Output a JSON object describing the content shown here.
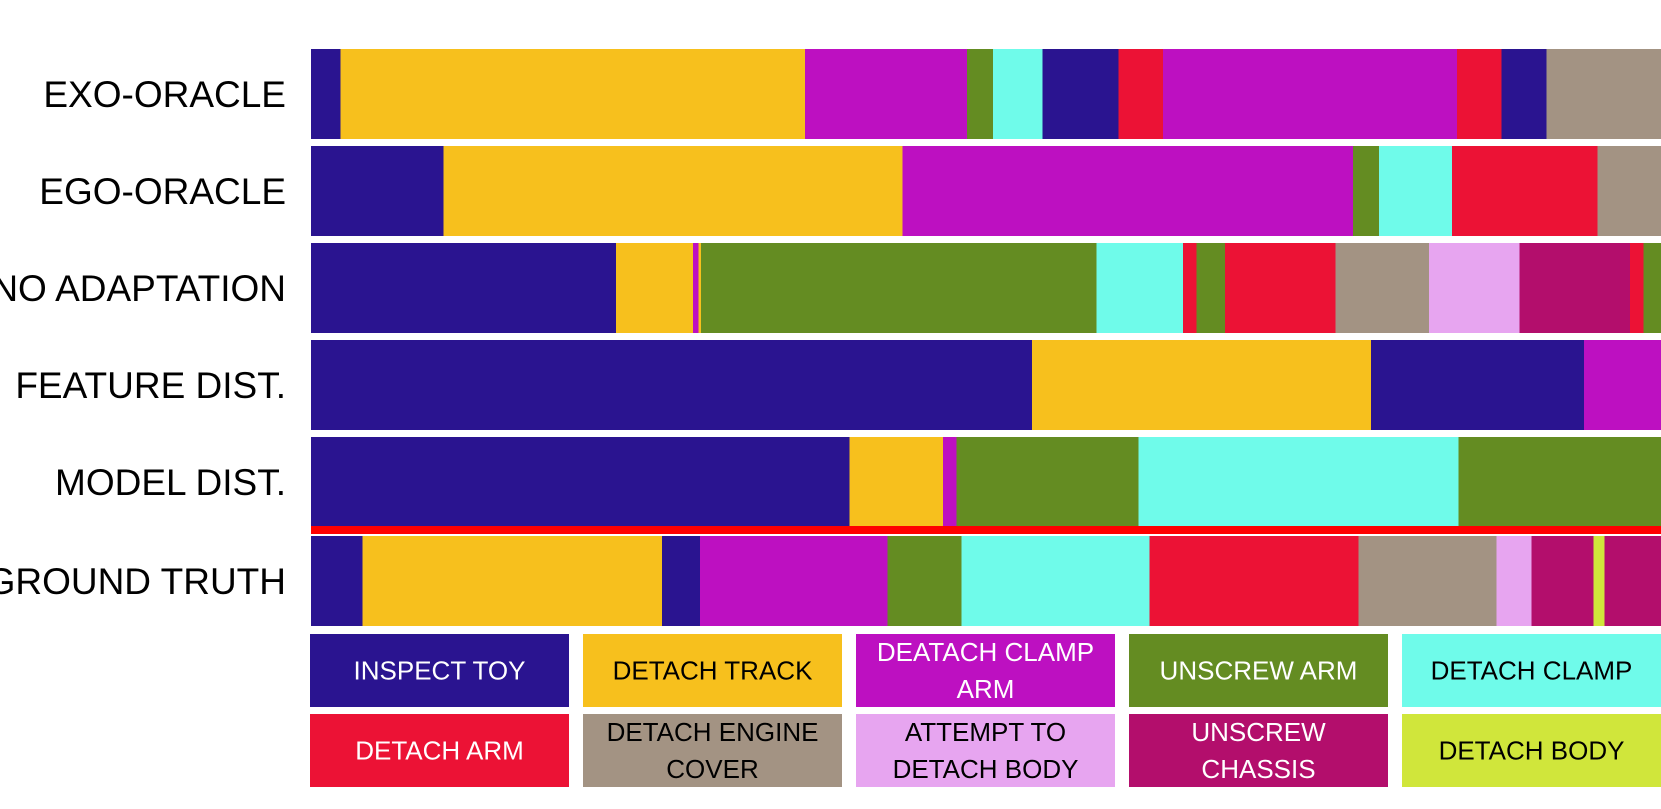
{
  "chart_data": {
    "type": "bar",
    "subtype": "segmentation-timeline",
    "x_range": [
      0,
      1
    ],
    "separator_color": "#ff0000",
    "rows": [
      {
        "label": "EXO-ORACLE",
        "segments": [
          {
            "action": "INSPECT TOY",
            "start": 0.0,
            "end": 0.022
          },
          {
            "action": "DETACH TRACK",
            "start": 0.022,
            "end": 0.366
          },
          {
            "action": "DEATACH CLAMP ARM",
            "start": 0.366,
            "end": 0.486
          },
          {
            "action": "UNSCREW ARM",
            "start": 0.486,
            "end": 0.505
          },
          {
            "action": "DETACH CLAMP",
            "start": 0.505,
            "end": 0.542
          },
          {
            "action": "INSPECT TOY",
            "start": 0.542,
            "end": 0.598
          },
          {
            "action": "DETACH ARM",
            "start": 0.598,
            "end": 0.631
          },
          {
            "action": "DEATACH CLAMP ARM",
            "start": 0.631,
            "end": 0.849
          },
          {
            "action": "DETACH ARM",
            "start": 0.849,
            "end": 0.882
          },
          {
            "action": "INSPECT TOY",
            "start": 0.882,
            "end": 0.915
          },
          {
            "action": "DETACH ENGINE COVER",
            "start": 0.915,
            "end": 1.0
          }
        ]
      },
      {
        "label": "EGO-ORACLE",
        "segments": [
          {
            "action": "INSPECT TOY",
            "start": 0.0,
            "end": 0.098
          },
          {
            "action": "DETACH TRACK",
            "start": 0.098,
            "end": 0.438
          },
          {
            "action": "DEATACH CLAMP ARM",
            "start": 0.438,
            "end": 0.772
          },
          {
            "action": "UNSCREW ARM",
            "start": 0.772,
            "end": 0.791
          },
          {
            "action": "DETACH CLAMP",
            "start": 0.791,
            "end": 0.845
          },
          {
            "action": "DETACH ARM",
            "start": 0.845,
            "end": 0.953
          },
          {
            "action": "DETACH ENGINE COVER",
            "start": 0.953,
            "end": 1.0
          }
        ]
      },
      {
        "label": "NO ADAPTATION",
        "segments": [
          {
            "action": "INSPECT TOY",
            "start": 0.0,
            "end": 0.226
          },
          {
            "action": "DETACH TRACK",
            "start": 0.226,
            "end": 0.283
          },
          {
            "action": "DEATACH CLAMP ARM",
            "start": 0.283,
            "end": 0.287
          },
          {
            "action": "DETACH TRACK",
            "start": 0.287,
            "end": 0.289
          },
          {
            "action": "UNSCREW ARM",
            "start": 0.289,
            "end": 0.582
          },
          {
            "action": "DETACH CLAMP",
            "start": 0.582,
            "end": 0.646
          },
          {
            "action": "DETACH ARM",
            "start": 0.646,
            "end": 0.656
          },
          {
            "action": "UNSCREW ARM",
            "start": 0.656,
            "end": 0.677
          },
          {
            "action": "DETACH ARM",
            "start": 0.677,
            "end": 0.759
          },
          {
            "action": "DETACH ENGINE COVER",
            "start": 0.759,
            "end": 0.828
          },
          {
            "action": "ATTEMPT TO DETACH BODY",
            "start": 0.828,
            "end": 0.895
          },
          {
            "action": "UNSCREW CHASSIS",
            "start": 0.895,
            "end": 0.977
          },
          {
            "action": "DETACH ARM",
            "start": 0.977,
            "end": 0.987
          },
          {
            "action": "UNSCREW ARM",
            "start": 0.987,
            "end": 1.0
          }
        ]
      },
      {
        "label": "FEATURE DIST.",
        "segments": [
          {
            "action": "INSPECT TOY",
            "start": 0.0,
            "end": 0.534
          },
          {
            "action": "DETACH TRACK",
            "start": 0.534,
            "end": 0.785
          },
          {
            "action": "INSPECT TOY",
            "start": 0.785,
            "end": 0.943
          },
          {
            "action": "DEATACH CLAMP ARM",
            "start": 0.943,
            "end": 1.0
          }
        ]
      },
      {
        "label": "MODEL DIST.",
        "segments": [
          {
            "action": "INSPECT TOY",
            "start": 0.0,
            "end": 0.399
          },
          {
            "action": "DETACH TRACK",
            "start": 0.399,
            "end": 0.468
          },
          {
            "action": "DEATACH CLAMP ARM",
            "start": 0.468,
            "end": 0.478
          },
          {
            "action": "UNSCREW ARM",
            "start": 0.478,
            "end": 0.613
          },
          {
            "action": "DETACH CLAMP",
            "start": 0.613,
            "end": 0.85
          },
          {
            "action": "UNSCREW ARM",
            "start": 0.85,
            "end": 1.0
          }
        ]
      },
      {
        "label": "GROUND TRUTH",
        "segments": [
          {
            "action": "INSPECT TOY",
            "start": 0.0,
            "end": 0.038
          },
          {
            "action": "DETACH TRACK",
            "start": 0.038,
            "end": 0.26
          },
          {
            "action": "INSPECT TOY",
            "start": 0.26,
            "end": 0.288
          },
          {
            "action": "DEATACH CLAMP ARM",
            "start": 0.288,
            "end": 0.427
          },
          {
            "action": "UNSCREW ARM",
            "start": 0.427,
            "end": 0.482
          },
          {
            "action": "DETACH CLAMP",
            "start": 0.482,
            "end": 0.621
          },
          {
            "action": "DETACH ARM",
            "start": 0.621,
            "end": 0.776
          },
          {
            "action": "DETACH ENGINE COVER",
            "start": 0.776,
            "end": 0.878
          },
          {
            "action": "ATTEMPT TO DETACH BODY",
            "start": 0.878,
            "end": 0.904
          },
          {
            "action": "UNSCREW CHASSIS",
            "start": 0.904,
            "end": 0.95
          },
          {
            "action": "DETACH BODY",
            "start": 0.95,
            "end": 0.958
          },
          {
            "action": "UNSCREW CHASSIS",
            "start": 0.958,
            "end": 1.0
          }
        ]
      }
    ],
    "legend": [
      {
        "label": "INSPECT TOY",
        "lines": [
          "INSPECT TOY"
        ],
        "color": "#2a1490",
        "text_color": "#ffffff"
      },
      {
        "label": "DETACH TRACK",
        "lines": [
          "DETACH TRACK"
        ],
        "color": "#f7c01d",
        "text_color": "#000000"
      },
      {
        "label": "DEATACH CLAMP ARM",
        "lines": [
          "DEATACH CLAMP",
          "ARM"
        ],
        "color": "#bd10c1",
        "text_color": "#ffffff"
      },
      {
        "label": "UNSCREW ARM",
        "lines": [
          "UNSCREW ARM"
        ],
        "color": "#648c22",
        "text_color": "#ffffff"
      },
      {
        "label": "DETACH CLAMP",
        "lines": [
          "DETACH CLAMP"
        ],
        "color": "#6ffbea",
        "text_color": "#000000"
      },
      {
        "label": "DETACH ARM",
        "lines": [
          "DETACH ARM"
        ],
        "color": "#ec1235",
        "text_color": "#ffffff"
      },
      {
        "label": "DETACH ENGINE COVER",
        "lines": [
          "DETACH ENGINE",
          "COVER"
        ],
        "color": "#a39383",
        "text_color": "#000000"
      },
      {
        "label": "ATTEMPT TO DETACH BODY",
        "lines": [
          "ATTEMPT TO",
          "DETACH BODY"
        ],
        "color": "#e7a5f0",
        "text_color": "#000000"
      },
      {
        "label": "UNSCREW CHASSIS",
        "lines": [
          "UNSCREW",
          "CHASSIS"
        ],
        "color": "#b30e6c",
        "text_color": "#ffffff"
      },
      {
        "label": "DETACH BODY",
        "lines": [
          "DETACH BODY"
        ],
        "color": "#d0e63b",
        "text_color": "#000000"
      }
    ]
  }
}
